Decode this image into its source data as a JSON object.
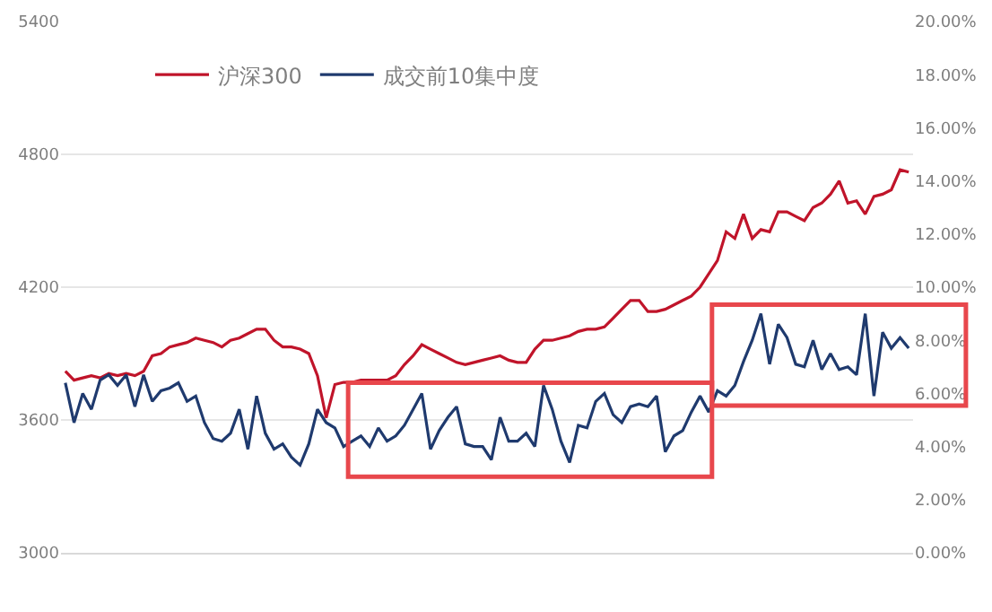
{
  "chart_data": {
    "type": "line",
    "categories": [
      null,
      null,
      null,
      null,
      null,
      null,
      null,
      null,
      null,
      null,
      null,
      null,
      null,
      null,
      null,
      null,
      null,
      null,
      null,
      null,
      null,
      null,
      null,
      null,
      null,
      null,
      null,
      null,
      null,
      null,
      null,
      null,
      null,
      null,
      null,
      null,
      null,
      null,
      null,
      null,
      null,
      null,
      null,
      null,
      null,
      null,
      null,
      null,
      null,
      null,
      null,
      null,
      null,
      null,
      null,
      null,
      null,
      null,
      null,
      null,
      null,
      null,
      null,
      null,
      null,
      null,
      null,
      null,
      null,
      null,
      null,
      null,
      null,
      null,
      null,
      null,
      null,
      null,
      null,
      null,
      null,
      null,
      null,
      null,
      null,
      null,
      null,
      null,
      null,
      null,
      null,
      null,
      null,
      null,
      null,
      null,
      null,
      null
    ],
    "series": [
      {
        "name": "沪深300",
        "color": "#c0142a",
        "values": [
          3820,
          3780,
          3790,
          3800,
          3790,
          3810,
          3800,
          3810,
          3800,
          3820,
          3890,
          3900,
          3930,
          3940,
          3950,
          3970,
          3960,
          3950,
          3930,
          3960,
          3970,
          3990,
          4010,
          4010,
          3960,
          3930,
          3930,
          3920,
          3900,
          3800,
          3610,
          3760,
          3770,
          3770,
          3780,
          3780,
          3780,
          3780,
          3800,
          3850,
          3890,
          3940,
          3920,
          3900,
          3880,
          3860,
          3850,
          3860,
          3870,
          3880,
          3890,
          3870,
          3860,
          3860,
          3920,
          3960,
          3960,
          3970,
          3980,
          4000,
          4010,
          4010,
          4020,
          4060,
          4100,
          4140,
          4140,
          4090,
          4090,
          4100,
          4120,
          4140,
          4160,
          4200,
          4260,
          4320,
          4450,
          4420,
          4530,
          4420,
          4460,
          4450,
          4540,
          4540,
          4520,
          4500,
          4560,
          4580,
          4620,
          4680,
          4580,
          4590,
          4530,
          4610,
          4620,
          4640,
          4730,
          4720
        ]
      },
      {
        "name": "成交前10集中度",
        "color": "#1f3a6e",
        "axis": "y2",
        "values": [
          6.4,
          4.9,
          6.0,
          5.4,
          6.5,
          6.7,
          6.3,
          6.7,
          5.5,
          6.7,
          5.7,
          6.1,
          6.2,
          6.4,
          5.7,
          5.9,
          4.9,
          4.3,
          4.2,
          4.5,
          5.4,
          3.9,
          5.9,
          4.5,
          3.9,
          4.1,
          3.6,
          3.3,
          4.1,
          5.4,
          4.9,
          4.7,
          4.0,
          4.2,
          4.4,
          4.0,
          4.7,
          4.2,
          4.4,
          4.8,
          5.4,
          6.0,
          3.9,
          4.6,
          5.1,
          5.5,
          4.1,
          4.0,
          4.0,
          3.5,
          5.1,
          4.2,
          4.2,
          4.5,
          4.0,
          6.3,
          5.4,
          4.2,
          3.4,
          4.8,
          4.7,
          5.7,
          6.0,
          5.2,
          4.9,
          5.5,
          5.6,
          5.5,
          5.9,
          3.8,
          4.4,
          4.6,
          5.3,
          5.9,
          5.3,
          6.1,
          5.9,
          6.3,
          7.2,
          8.0,
          9.0,
          7.1,
          8.6,
          8.1,
          7.1,
          7.0,
          8.0,
          6.9,
          7.5,
          6.9,
          7.0,
          6.7,
          9.0,
          5.9,
          8.3,
          7.7,
          8.1,
          7.7
        ]
      }
    ],
    "ylim": [
      3000,
      5400
    ],
    "yticks": [
      3000,
      3600,
      4200,
      4800,
      5400
    ],
    "y2lim": [
      0,
      20
    ],
    "y2ticks": [
      {
        "value": 0,
        "label": "0.00%"
      },
      {
        "value": 2,
        "label": "2.00%"
      },
      {
        "value": 4,
        "label": "4.00%"
      },
      {
        "value": 6,
        "label": "6.00%"
      },
      {
        "value": 8,
        "label": "8.00%"
      },
      {
        "value": 10,
        "label": "10.00%"
      },
      {
        "value": 12,
        "label": "12.00%"
      },
      {
        "value": 14,
        "label": "14.00%"
      },
      {
        "value": 16,
        "label": "16.00%"
      },
      {
        "value": 18,
        "label": "18.00%"
      },
      {
        "value": 20,
        "label": "20.00%"
      }
    ],
    "grid": "y",
    "legend": "top left",
    "marker": "none",
    "line_style": "solid"
  }
}
